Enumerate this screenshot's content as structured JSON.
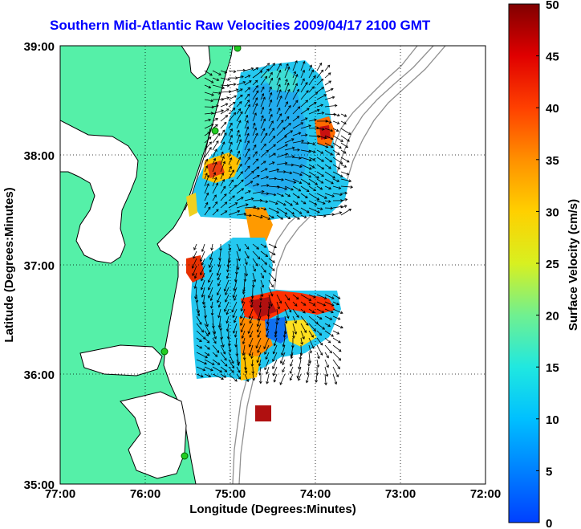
{
  "title": "Southern Mid-Atlantic Raw Velocities 2009/04/17 2100 GMT",
  "xlabel": "Longitude (Degrees:Minutes)",
  "ylabel": "Latitude (Degrees:Minutes)",
  "colorbar_label": "Surface Velocity (cm/s)",
  "x_ticks": [
    "77:00",
    "76:00",
    "75:00",
    "74:00",
    "73:00",
    "72:00"
  ],
  "y_ticks": [
    "39:00",
    "38:00",
    "37:00",
    "36:00",
    "35:00"
  ],
  "colorbar_ticks": [
    "50",
    "45",
    "40",
    "35",
    "30",
    "25",
    "20",
    "15",
    "10",
    "5",
    "0"
  ],
  "colors": {
    "land": "#55f0a8",
    "ocean": "#ffffff",
    "coast_line": "#000000",
    "bathymetry": "#909090",
    "station": "#22cc22",
    "title": "#0000ff"
  },
  "colorbar_scale": {
    "min": 0,
    "max": 50,
    "unit": "cm/s"
  }
}
